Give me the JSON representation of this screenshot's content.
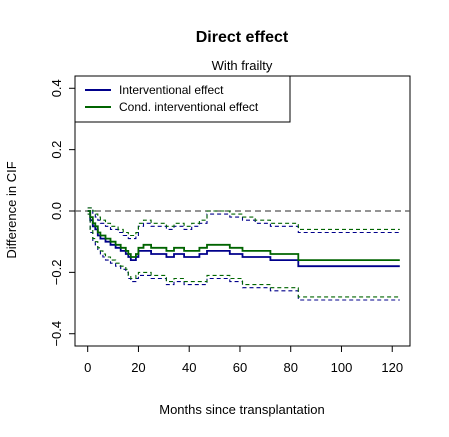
{
  "chart_data": {
    "type": "line",
    "title": "Direct effect",
    "subtitle": "With frailty",
    "xlabel": "Months since transplantation",
    "ylabel": "Difference in CIF",
    "xlim": [
      -5,
      127
    ],
    "ylim": [
      -0.44,
      0.44
    ],
    "xticks": [
      0,
      20,
      40,
      60,
      80,
      100,
      120
    ],
    "yticks": [
      -0.4,
      -0.2,
      0.0,
      0.2,
      0.4
    ],
    "ytick_labels": [
      "−0.4",
      "−0.2",
      "0.0",
      "0.2",
      "0.4"
    ],
    "reference_line": 0,
    "legend": {
      "position": "top-left",
      "entries": [
        {
          "label": "Interventional effect",
          "color": "#00008B"
        },
        {
          "label": "Cond. interventional effect",
          "color": "#006400"
        }
      ]
    },
    "series": [
      {
        "name": "Interventional effect",
        "color": "#00008B",
        "style": "solid",
        "x": [
          0,
          1,
          2,
          3,
          4,
          5,
          6,
          7,
          8,
          9,
          10,
          11,
          12,
          13,
          14,
          15,
          16,
          17,
          18,
          19,
          20,
          22,
          25,
          28,
          31,
          34,
          38,
          41,
          44,
          47,
          51,
          56,
          61,
          66,
          72,
          83,
          123
        ],
        "y": [
          0.0,
          -0.03,
          -0.05,
          -0.06,
          -0.08,
          -0.09,
          -0.09,
          -0.1,
          -0.1,
          -0.11,
          -0.11,
          -0.12,
          -0.12,
          -0.13,
          -0.13,
          -0.14,
          -0.15,
          -0.16,
          -0.16,
          -0.15,
          -0.13,
          -0.13,
          -0.14,
          -0.14,
          -0.15,
          -0.14,
          -0.15,
          -0.15,
          -0.14,
          -0.13,
          -0.13,
          -0.14,
          -0.15,
          -0.15,
          -0.16,
          -0.18,
          -0.18
        ]
      },
      {
        "name": "Cond. interventional effect",
        "color": "#006400",
        "style": "solid",
        "x": [
          0,
          1,
          2,
          3,
          4,
          5,
          6,
          7,
          8,
          9,
          10,
          11,
          12,
          13,
          14,
          15,
          16,
          17,
          18,
          19,
          20,
          22,
          25,
          28,
          31,
          34,
          38,
          41,
          44,
          47,
          51,
          56,
          61,
          66,
          72,
          83,
          123
        ],
        "y": [
          0.0,
          -0.02,
          -0.04,
          -0.05,
          -0.07,
          -0.08,
          -0.08,
          -0.09,
          -0.09,
          -0.1,
          -0.1,
          -0.11,
          -0.11,
          -0.12,
          -0.12,
          -0.13,
          -0.14,
          -0.15,
          -0.15,
          -0.14,
          -0.12,
          -0.11,
          -0.12,
          -0.12,
          -0.13,
          -0.12,
          -0.13,
          -0.13,
          -0.12,
          -0.11,
          -0.11,
          -0.12,
          -0.13,
          -0.13,
          -0.14,
          -0.16,
          -0.16
        ]
      },
      {
        "name": "",
        "color": "#00008B",
        "style": "dashed",
        "x": [
          0,
          1,
          2,
          3,
          4,
          5,
          6,
          7,
          8,
          9,
          10,
          11,
          12,
          13,
          14,
          15,
          16,
          17,
          18,
          19,
          20,
          22,
          25,
          28,
          31,
          34,
          38,
          41,
          44,
          47,
          51,
          56,
          61,
          66,
          72,
          83,
          123
        ],
        "y": [
          0.01,
          0.01,
          -0.01,
          -0.02,
          -0.03,
          -0.04,
          -0.04,
          -0.05,
          -0.05,
          -0.06,
          -0.06,
          -0.06,
          -0.07,
          -0.07,
          -0.08,
          -0.08,
          -0.09,
          -0.09,
          -0.09,
          -0.08,
          -0.05,
          -0.04,
          -0.05,
          -0.05,
          -0.06,
          -0.05,
          -0.06,
          -0.05,
          -0.04,
          -0.01,
          -0.01,
          -0.02,
          -0.03,
          -0.04,
          -0.05,
          -0.07,
          -0.07
        ]
      },
      {
        "name": "",
        "color": "#00008B",
        "style": "dashed",
        "x": [
          0,
          1,
          2,
          3,
          4,
          5,
          6,
          7,
          8,
          9,
          10,
          11,
          12,
          13,
          14,
          15,
          16,
          17,
          18,
          19,
          20,
          22,
          25,
          28,
          31,
          34,
          38,
          41,
          44,
          47,
          51,
          56,
          61,
          66,
          72,
          83,
          123
        ],
        "y": [
          -0.01,
          -0.07,
          -0.1,
          -0.11,
          -0.13,
          -0.14,
          -0.15,
          -0.16,
          -0.16,
          -0.17,
          -0.17,
          -0.18,
          -0.18,
          -0.19,
          -0.19,
          -0.2,
          -0.22,
          -0.23,
          -0.23,
          -0.22,
          -0.21,
          -0.21,
          -0.22,
          -0.22,
          -0.24,
          -0.23,
          -0.24,
          -0.24,
          -0.24,
          -0.22,
          -0.22,
          -0.23,
          -0.25,
          -0.25,
          -0.26,
          -0.29,
          -0.29
        ]
      },
      {
        "name": "",
        "color": "#006400",
        "style": "dashed",
        "x": [
          0,
          1,
          2,
          3,
          4,
          5,
          6,
          7,
          8,
          9,
          10,
          11,
          12,
          13,
          14,
          15,
          16,
          17,
          18,
          19,
          20,
          22,
          25,
          28,
          31,
          34,
          38,
          41,
          44,
          47,
          51,
          56,
          61,
          66,
          72,
          83,
          123
        ],
        "y": [
          0.01,
          0.01,
          0.0,
          -0.01,
          -0.02,
          -0.03,
          -0.03,
          -0.04,
          -0.04,
          -0.05,
          -0.05,
          -0.05,
          -0.06,
          -0.06,
          -0.07,
          -0.07,
          -0.08,
          -0.08,
          -0.08,
          -0.07,
          -0.04,
          -0.03,
          -0.04,
          -0.04,
          -0.05,
          -0.04,
          -0.05,
          -0.04,
          -0.03,
          0.0,
          0.0,
          -0.01,
          -0.02,
          -0.03,
          -0.04,
          -0.06,
          -0.06
        ]
      },
      {
        "name": "",
        "color": "#006400",
        "style": "dashed",
        "x": [
          0,
          1,
          2,
          3,
          4,
          5,
          6,
          7,
          8,
          9,
          10,
          11,
          12,
          13,
          14,
          15,
          16,
          17,
          18,
          19,
          20,
          22,
          25,
          28,
          31,
          34,
          38,
          41,
          44,
          47,
          51,
          56,
          61,
          66,
          72,
          83,
          123
        ],
        "y": [
          -0.01,
          -0.06,
          -0.09,
          -0.1,
          -0.12,
          -0.13,
          -0.14,
          -0.15,
          -0.15,
          -0.16,
          -0.16,
          -0.17,
          -0.17,
          -0.18,
          -0.18,
          -0.19,
          -0.21,
          -0.22,
          -0.22,
          -0.21,
          -0.2,
          -0.2,
          -0.21,
          -0.21,
          -0.23,
          -0.22,
          -0.23,
          -0.23,
          -0.23,
          -0.21,
          -0.21,
          -0.22,
          -0.24,
          -0.24,
          -0.25,
          -0.28,
          -0.28
        ]
      }
    ]
  }
}
